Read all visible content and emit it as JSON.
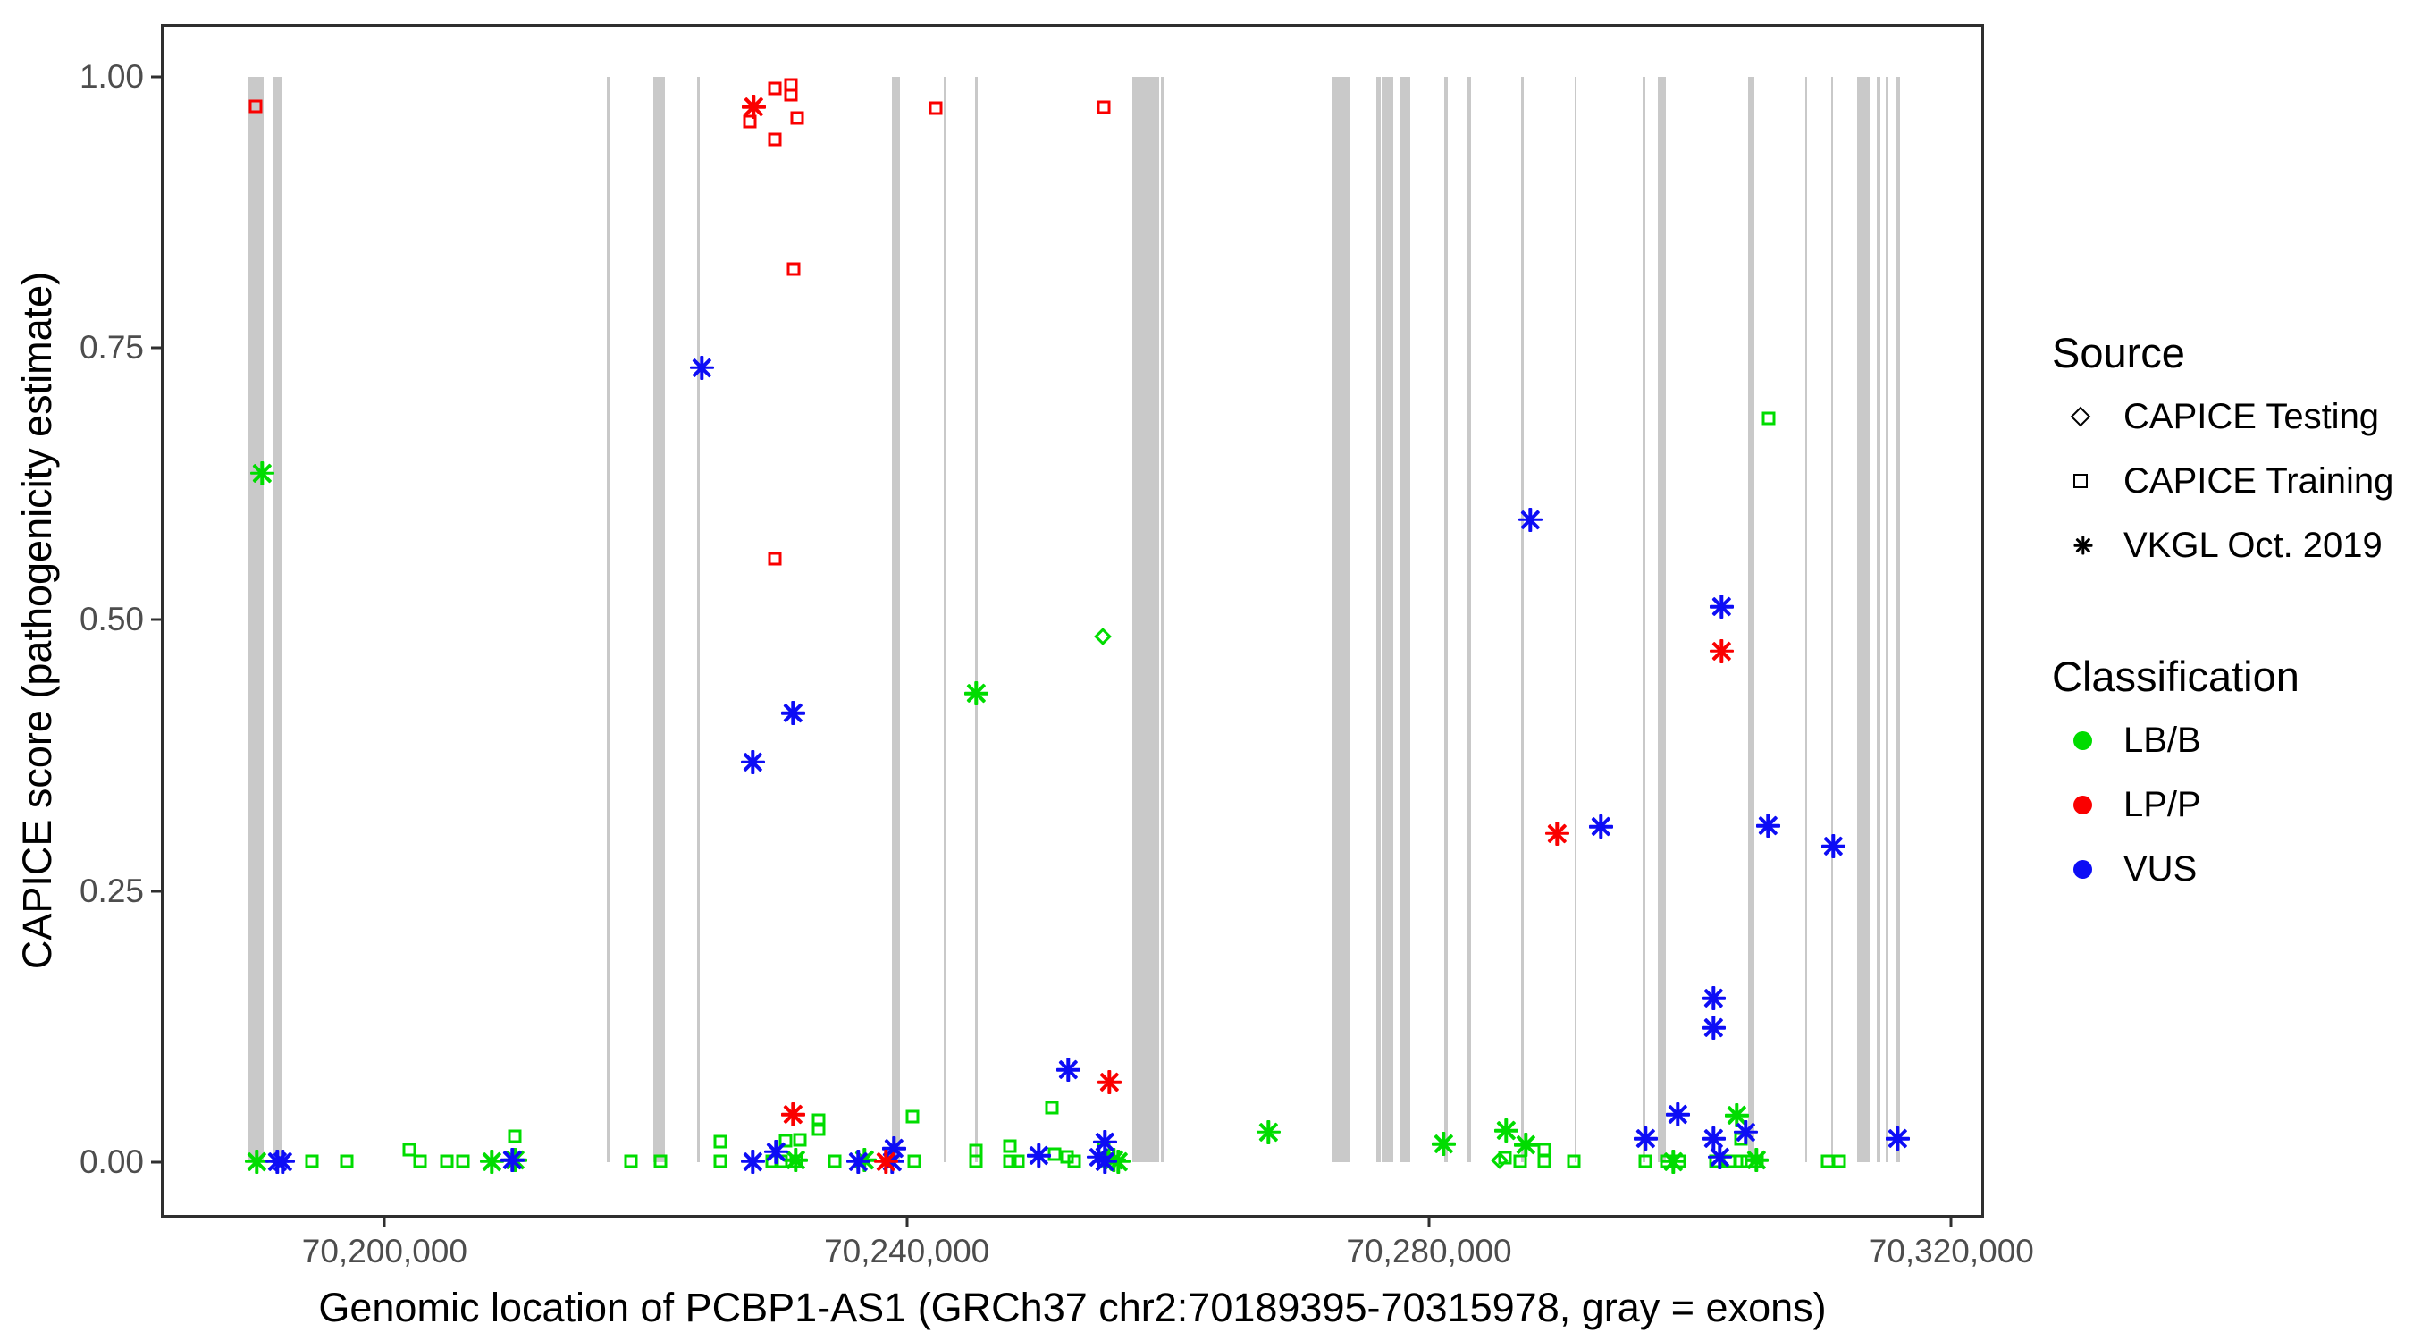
{
  "axes": {
    "x": {
      "title": "Genomic location of PCBP1-AS1 (GRCh37 chr2:70189395-70315978, gray = exons)",
      "min": 70183066,
      "max": 70322307,
      "ticks": [
        {
          "value": 70200000,
          "label": "70,200,000"
        },
        {
          "value": 70240000,
          "label": "70,240,000"
        },
        {
          "value": 70280000,
          "label": "70,280,000"
        },
        {
          "value": 70320000,
          "label": "70,320,000"
        }
      ]
    },
    "y": {
      "title": "CAPICE score (pathogenicity estimate)",
      "min": -0.0484,
      "max": 1.0459,
      "ticks": [
        {
          "value": 0.0,
          "label": "0.00"
        },
        {
          "value": 0.25,
          "label": "0.25"
        },
        {
          "value": 0.5,
          "label": "0.50"
        },
        {
          "value": 0.75,
          "label": "0.75"
        },
        {
          "value": 1.0,
          "label": "1.00"
        }
      ]
    }
  },
  "legend": {
    "source": {
      "title": "Source",
      "items": [
        {
          "label": "CAPICE Testing",
          "marker": "diamond"
        },
        {
          "label": "CAPICE Training",
          "marker": "square"
        },
        {
          "label": "VKGL Oct. 2019",
          "marker": "asterisk"
        }
      ]
    },
    "classification": {
      "title": "Classification",
      "items": [
        {
          "label": "LB/B",
          "color": "#00dc00"
        },
        {
          "label": "LP/P",
          "color": "#fa0000"
        },
        {
          "label": "VUS",
          "color": "#0d0df5"
        }
      ]
    }
  },
  "colors": {
    "exon_gray": "#c9c9c9",
    "panel_border": "#2f2f2f",
    "lbb_green": "#00dc00",
    "lpp_red": "#fa0000",
    "vus_blue": "#0d0df5"
  },
  "chart_data": {
    "type": "scatter",
    "title": "",
    "xlabel": "Genomic location of PCBP1-AS1 (GRCh37 chr2:70189395-70315978, gray = exons)",
    "ylabel": "CAPICE score (pathogenicity estimate)",
    "xlim": [
      70183066,
      70322307
    ],
    "ylim": [
      -0.0484,
      1.0459
    ],
    "grid": false,
    "legend_position": "right",
    "exons": [
      [
        70189480,
        70190710
      ],
      [
        70191460,
        70192075
      ],
      [
        70216990,
        70217195
      ],
      [
        70220600,
        70221495
      ],
      [
        70223950,
        70224155
      ],
      [
        70238830,
        70239445
      ],
      [
        70242855,
        70243060
      ],
      [
        70245245,
        70245450
      ],
      [
        70257260,
        70259310
      ],
      [
        70259440,
        70259650
      ],
      [
        70272550,
        70273980
      ],
      [
        70275960,
        70276300
      ],
      [
        70276370,
        70277260
      ],
      [
        70277735,
        70278555
      ],
      [
        70281150,
        70281420
      ],
      [
        70282855,
        70283195
      ],
      [
        70287020,
        70287290
      ],
      [
        70291180,
        70291320
      ],
      [
        70296370,
        70296575
      ],
      [
        70297530,
        70298145
      ],
      [
        70304420,
        70304900
      ],
      [
        70308790,
        70308930
      ],
      [
        70310840,
        70310975
      ],
      [
        70312820,
        70313775
      ],
      [
        70314320,
        70314595
      ],
      [
        70315000,
        70315210
      ],
      [
        70315755,
        70316095
      ]
    ],
    "series": [
      {
        "name": "CAPICE Training / LB/B",
        "source": "CAPICE Training",
        "classification": "LB/B",
        "marker": "square",
        "color": "#00dc00",
        "points": [
          [
            70194400,
            0.001
          ],
          [
            70197100,
            0.001
          ],
          [
            70201900,
            0.012
          ],
          [
            70202700,
            0.001
          ],
          [
            70204800,
            0.001
          ],
          [
            70206000,
            0.001
          ],
          [
            70210000,
            0.024
          ],
          [
            70218900,
            0.001
          ],
          [
            70221100,
            0.001
          ],
          [
            70225700,
            0.019
          ],
          [
            70225700,
            0.001
          ],
          [
            70229700,
            0.001
          ],
          [
            70230400,
            0.001
          ],
          [
            70230700,
            0.02
          ],
          [
            70231500,
            0.001
          ],
          [
            70231800,
            0.021
          ],
          [
            70233250,
            0.039
          ],
          [
            70233250,
            0.031
          ],
          [
            70234500,
            0.001
          ],
          [
            70240400,
            0.042
          ],
          [
            70240600,
            0.001
          ],
          [
            70245300,
            0.011
          ],
          [
            70245300,
            0.001
          ],
          [
            70247900,
            0.015
          ],
          [
            70247900,
            0.001
          ],
          [
            70248500,
            0.001
          ],
          [
            70251100,
            0.05
          ],
          [
            70251300,
            0.008
          ],
          [
            70252300,
            0.005
          ],
          [
            70252800,
            0.001
          ],
          [
            70255100,
            0.013
          ],
          [
            70255500,
            0.001
          ],
          [
            70285800,
            0.004
          ],
          [
            70287000,
            0.001
          ],
          [
            70288800,
            0.012
          ],
          [
            70288800,
            0.001
          ],
          [
            70291100,
            0.001
          ],
          [
            70296600,
            0.001
          ],
          [
            70298200,
            0.001
          ],
          [
            70299200,
            0.001
          ],
          [
            70302000,
            0.001
          ],
          [
            70303000,
            0.001
          ],
          [
            70303900,
            0.022
          ],
          [
            70303900,
            0.001
          ],
          [
            70304400,
            0.001
          ],
          [
            70305100,
            0.001
          ],
          [
            70306000,
            0.685
          ],
          [
            70310500,
            0.001
          ],
          [
            70311400,
            0.001
          ]
        ]
      },
      {
        "name": "VKGL Oct. 2019 / LB/B",
        "source": "VKGL Oct. 2019",
        "classification": "LB/B",
        "marker": "asterisk",
        "color": "#00dc00",
        "points": [
          [
            70190600,
            0.635
          ],
          [
            70190200,
            0.001
          ],
          [
            70208200,
            0.001
          ],
          [
            70210000,
            0.002
          ],
          [
            70231500,
            0.002
          ],
          [
            70236800,
            0.002
          ],
          [
            70245300,
            0.432
          ],
          [
            70255900,
            0.002
          ],
          [
            70256200,
            0.001
          ],
          [
            70267700,
            0.028
          ],
          [
            70281100,
            0.017
          ],
          [
            70285900,
            0.029
          ],
          [
            70287400,
            0.016
          ],
          [
            70298700,
            0.001
          ],
          [
            70303600,
            0.043
          ],
          [
            70305100,
            0.002
          ]
        ]
      },
      {
        "name": "VKGL Oct. 2019 / VUS",
        "source": "VKGL Oct. 2019",
        "classification": "VUS",
        "marker": "asterisk",
        "color": "#0d0df5",
        "points": [
          [
            70191800,
            0.001
          ],
          [
            70192200,
            0.001
          ],
          [
            70209800,
            0.002
          ],
          [
            70224300,
            0.732
          ],
          [
            70228200,
            0.369
          ],
          [
            70228200,
            0.001
          ],
          [
            70230000,
            0.01
          ],
          [
            70231300,
            0.414
          ],
          [
            70236300,
            0.001
          ],
          [
            70238900,
            0.001
          ],
          [
            70239000,
            0.013
          ],
          [
            70250100,
            0.006
          ],
          [
            70252400,
            0.085
          ],
          [
            70254700,
            0.005
          ],
          [
            70255200,
            0.019
          ],
          [
            70255200,
            0.001
          ],
          [
            70287800,
            0.592
          ],
          [
            70293200,
            0.309
          ],
          [
            70296600,
            0.022
          ],
          [
            70299100,
            0.044
          ],
          [
            70301800,
            0.151
          ],
          [
            70301800,
            0.124
          ],
          [
            70301800,
            0.022
          ],
          [
            70302300,
            0.005
          ],
          [
            70302400,
            0.512
          ],
          [
            70304300,
            0.028
          ],
          [
            70306000,
            0.31
          ],
          [
            70311000,
            0.291
          ],
          [
            70315900,
            0.022
          ]
        ]
      },
      {
        "name": "VKGL Oct. 2019 / LP/P",
        "source": "VKGL Oct. 2019",
        "classification": "LP/P",
        "marker": "asterisk",
        "color": "#fa0000",
        "points": [
          [
            70228300,
            0.972
          ],
          [
            70231300,
            0.044
          ],
          [
            70238400,
            0.001
          ],
          [
            70255500,
            0.074
          ],
          [
            70289800,
            0.303
          ],
          [
            70302400,
            0.471
          ]
        ]
      },
      {
        "name": "CAPICE Training / LP/P",
        "source": "CAPICE Training",
        "classification": "LP/P",
        "marker": "square",
        "color": "#fa0000",
        "points": [
          [
            70190100,
            0.973
          ],
          [
            70228000,
            0.959
          ],
          [
            70229900,
            0.989
          ],
          [
            70229900,
            0.942
          ],
          [
            70231100,
            0.992
          ],
          [
            70231100,
            0.983
          ],
          [
            70231600,
            0.962
          ],
          [
            70231300,
            0.823
          ],
          [
            70229900,
            0.556
          ],
          [
            70242200,
            0.971
          ],
          [
            70255100,
            0.972
          ]
        ]
      },
      {
        "name": "CAPICE Testing / LB/B",
        "source": "CAPICE Testing",
        "classification": "LB/B",
        "marker": "diamond",
        "color": "#00dc00",
        "points": [
          [
            70255000,
            0.484
          ],
          [
            70285400,
            0.002
          ]
        ]
      }
    ]
  }
}
